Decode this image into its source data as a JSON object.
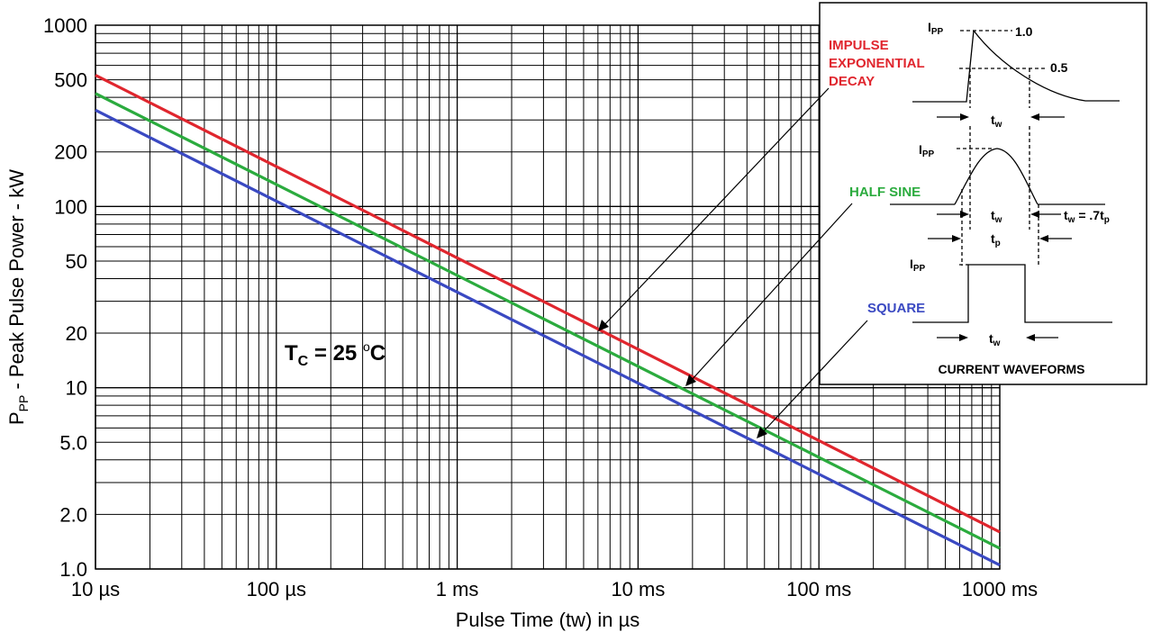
{
  "chart_data": {
    "type": "line",
    "xscale": "log",
    "yscale": "log",
    "xlim_us": [
      10,
      1000000
    ],
    "ylim_kw": [
      1.0,
      1000
    ],
    "grid": true,
    "xlabel": "Pulse Time (tw) in µs",
    "ylabel": "Peak Pulse Power - kW",
    "ylabel_symbol": "P",
    "ylabel_sub": "PP",
    "x_ticks": [
      {
        "value": 10,
        "label": "10 µs"
      },
      {
        "value": 100,
        "label": "100 µs"
      },
      {
        "value": 1000,
        "label": "1 ms"
      },
      {
        "value": 10000,
        "label": "10 ms"
      },
      {
        "value": 100000,
        "label": "100 ms"
      },
      {
        "value": 1000000,
        "label": "1000 ms"
      }
    ],
    "y_ticks": [
      {
        "value": 1000,
        "label": "1000"
      },
      {
        "value": 500,
        "label": "500"
      },
      {
        "value": 200,
        "label": "200"
      },
      {
        "value": 100,
        "label": "100"
      },
      {
        "value": 50,
        "label": "50"
      },
      {
        "value": 20,
        "label": "20"
      },
      {
        "value": 10,
        "label": "10"
      },
      {
        "value": 5,
        "label": "5.0"
      },
      {
        "value": 2,
        "label": "2.0"
      },
      {
        "value": 1,
        "label": "1.0"
      }
    ],
    "series": [
      {
        "name": "IMPULSE EXPONENTIAL DECAY",
        "color": "#e0262e",
        "x": [
          10,
          1000000
        ],
        "y": [
          530,
          1.6
        ]
      },
      {
        "name": "HALF SINE",
        "color": "#2bab3e",
        "x": [
          10,
          1000000
        ],
        "y": [
          420,
          1.3
        ]
      },
      {
        "name": "SQUARE",
        "color": "#3a49c2",
        "x": [
          10,
          1000000
        ],
        "y": [
          340,
          1.05
        ]
      }
    ],
    "annotation": {
      "main": "T",
      "sub": "C",
      "rest": " = 25 ",
      "sup": "o",
      "unit": "C"
    }
  },
  "labels": {
    "impulse": [
      "IMPULSE",
      "EXPONENTIAL",
      "DECAY"
    ],
    "half_sine": "HALF SINE",
    "square": "SQUARE"
  },
  "inset": {
    "title": "CURRENT WAVEFORMS",
    "ipp_main": "I",
    "ipp_sub": "PP",
    "level_1": "1.0",
    "level_05": "0.5",
    "tw_main": "t",
    "tw_sub": "w",
    "tp_main": "t",
    "tp_sub": "p",
    "tw_eq": " = .7t"
  }
}
